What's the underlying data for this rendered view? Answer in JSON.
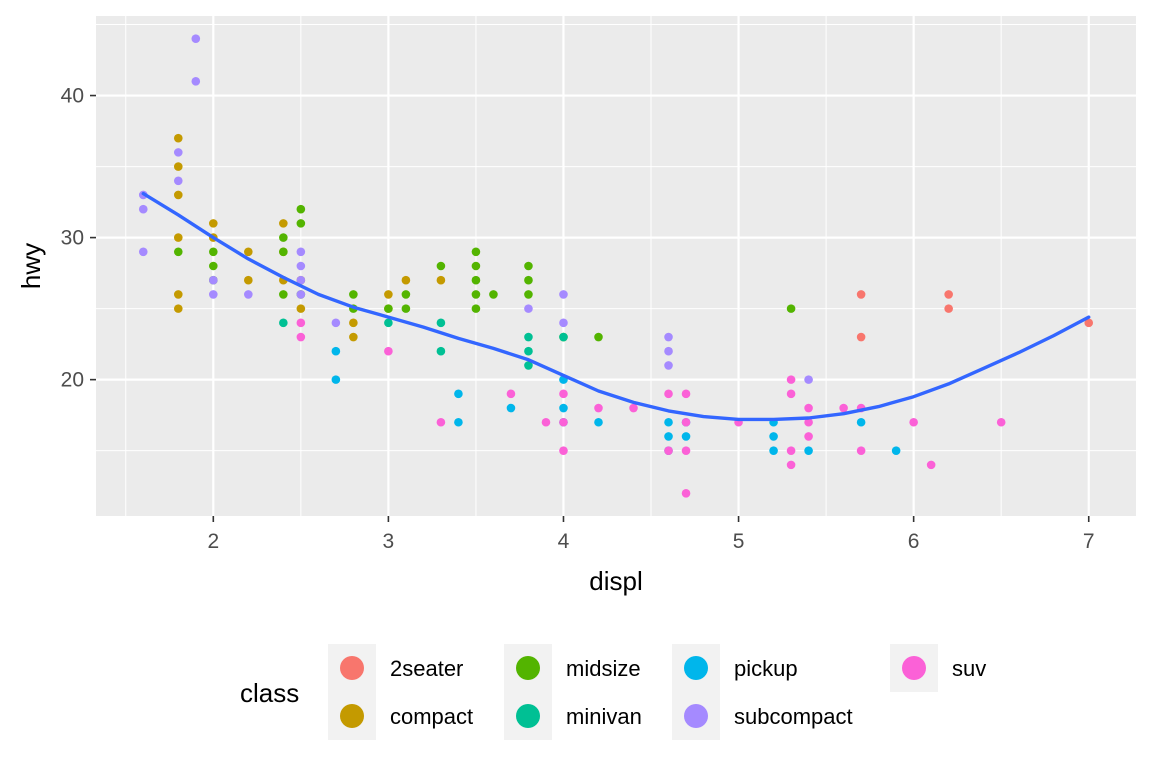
{
  "chart_data": {
    "type": "scatter",
    "xlabel": "displ",
    "ylabel": "hwy",
    "xlim": [
      1.33,
      7.27
    ],
    "ylim": [
      10.4,
      45.6
    ],
    "x_ticks": [
      2,
      3,
      4,
      5,
      6,
      7
    ],
    "y_ticks": [
      20,
      30,
      40
    ],
    "grid": true,
    "legend": {
      "title": "class",
      "placement": "bottom",
      "entries": [
        {
          "name": "2seater",
          "color": "#F8766D"
        },
        {
          "name": "compact",
          "color": "#C49A00"
        },
        {
          "name": "midsize",
          "color": "#53B400"
        },
        {
          "name": "minivan",
          "color": "#00C094"
        },
        {
          "name": "pickup",
          "color": "#00B6EB"
        },
        {
          "name": "subcompact",
          "color": "#A58AFF"
        },
        {
          "name": "suv",
          "color": "#FB61D7"
        }
      ]
    },
    "series": [
      {
        "name": "2seater",
        "color": "#F8766D",
        "points": [
          [
            5.7,
            26
          ],
          [
            5.7,
            23
          ],
          [
            6.2,
            26
          ],
          [
            6.2,
            25
          ],
          [
            7.0,
            24
          ]
        ]
      },
      {
        "name": "compact",
        "color": "#C49A00",
        "points": [
          [
            1.8,
            37
          ],
          [
            1.8,
            35
          ],
          [
            1.8,
            33
          ],
          [
            1.8,
            30
          ],
          [
            1.8,
            26
          ],
          [
            1.8,
            25
          ],
          [
            2.0,
            31
          ],
          [
            2.0,
            30
          ],
          [
            2.2,
            29
          ],
          [
            2.2,
            27
          ],
          [
            2.4,
            31
          ],
          [
            2.4,
            29
          ],
          [
            2.4,
            27
          ],
          [
            2.5,
            27
          ],
          [
            2.5,
            25
          ],
          [
            2.8,
            24
          ],
          [
            2.8,
            23
          ],
          [
            3.0,
            26
          ],
          [
            3.0,
            25
          ],
          [
            3.1,
            27
          ],
          [
            3.3,
            27
          ]
        ]
      },
      {
        "name": "midsize",
        "color": "#53B400",
        "points": [
          [
            1.8,
            29
          ],
          [
            2.0,
            29
          ],
          [
            2.0,
            28
          ],
          [
            2.0,
            27
          ],
          [
            2.4,
            30
          ],
          [
            2.4,
            29
          ],
          [
            2.4,
            26
          ],
          [
            2.5,
            32
          ],
          [
            2.5,
            31
          ],
          [
            2.5,
            26
          ],
          [
            2.8,
            26
          ],
          [
            2.8,
            25
          ],
          [
            3.0,
            25
          ],
          [
            3.1,
            26
          ],
          [
            3.1,
            25
          ],
          [
            3.3,
            28
          ],
          [
            3.5,
            29
          ],
          [
            3.5,
            28
          ],
          [
            3.5,
            27
          ],
          [
            3.5,
            26
          ],
          [
            3.5,
            25
          ],
          [
            3.6,
            26
          ],
          [
            3.8,
            28
          ],
          [
            3.8,
            27
          ],
          [
            3.8,
            26
          ],
          [
            4.0,
            23
          ],
          [
            4.2,
            23
          ],
          [
            5.3,
            25
          ]
        ]
      },
      {
        "name": "minivan",
        "color": "#00C094",
        "points": [
          [
            2.4,
            24
          ],
          [
            3.0,
            24
          ],
          [
            3.3,
            24
          ],
          [
            3.3,
            22
          ],
          [
            3.8,
            23
          ],
          [
            3.8,
            22
          ],
          [
            3.8,
            21
          ],
          [
            4.0,
            23
          ]
        ]
      },
      {
        "name": "pickup",
        "color": "#00B6EB",
        "points": [
          [
            2.7,
            22
          ],
          [
            2.7,
            20
          ],
          [
            3.4,
            19
          ],
          [
            3.4,
            17
          ],
          [
            3.7,
            18
          ],
          [
            4.0,
            20
          ],
          [
            4.0,
            18
          ],
          [
            4.0,
            17
          ],
          [
            4.2,
            17
          ],
          [
            4.6,
            17
          ],
          [
            4.6,
            16
          ],
          [
            4.6,
            15
          ],
          [
            4.7,
            17
          ],
          [
            4.7,
            16
          ],
          [
            5.2,
            17
          ],
          [
            5.2,
            16
          ],
          [
            5.2,
            15
          ],
          [
            5.4,
            15
          ],
          [
            5.7,
            17
          ],
          [
            5.9,
            15
          ]
        ]
      },
      {
        "name": "subcompact",
        "color": "#A58AFF",
        "points": [
          [
            1.6,
            33
          ],
          [
            1.6,
            32
          ],
          [
            1.6,
            29
          ],
          [
            1.8,
            36
          ],
          [
            1.8,
            34
          ],
          [
            1.9,
            44
          ],
          [
            1.9,
            41
          ],
          [
            2.0,
            27
          ],
          [
            2.0,
            26
          ],
          [
            2.2,
            26
          ],
          [
            2.5,
            29
          ],
          [
            2.5,
            28
          ],
          [
            2.5,
            27
          ],
          [
            2.5,
            26
          ],
          [
            2.7,
            24
          ],
          [
            3.8,
            25
          ],
          [
            4.0,
            26
          ],
          [
            4.0,
            24
          ],
          [
            4.6,
            23
          ],
          [
            4.6,
            22
          ],
          [
            4.6,
            21
          ],
          [
            5.4,
            20
          ]
        ]
      },
      {
        "name": "suv",
        "color": "#FB61D7",
        "points": [
          [
            2.5,
            24
          ],
          [
            2.5,
            23
          ],
          [
            3.0,
            22
          ],
          [
            3.3,
            17
          ],
          [
            3.7,
            19
          ],
          [
            3.9,
            17
          ],
          [
            4.0,
            19
          ],
          [
            4.0,
            17
          ],
          [
            4.0,
            15
          ],
          [
            4.2,
            18
          ],
          [
            4.4,
            18
          ],
          [
            4.6,
            19
          ],
          [
            4.6,
            15
          ],
          [
            4.7,
            19
          ],
          [
            4.7,
            17
          ],
          [
            4.7,
            15
          ],
          [
            4.7,
            12
          ],
          [
            5.0,
            17
          ],
          [
            5.3,
            20
          ],
          [
            5.3,
            19
          ],
          [
            5.3,
            15
          ],
          [
            5.3,
            14
          ],
          [
            5.4,
            18
          ],
          [
            5.4,
            17
          ],
          [
            5.4,
            16
          ],
          [
            5.6,
            18
          ],
          [
            5.7,
            18
          ],
          [
            5.7,
            15
          ],
          [
            6.0,
            17
          ],
          [
            6.1,
            14
          ],
          [
            6.5,
            17
          ]
        ]
      }
    ],
    "smooth": {
      "color": "#3366FF",
      "points": [
        [
          1.6,
          33.1
        ],
        [
          1.8,
          31.6
        ],
        [
          2.0,
          30.0
        ],
        [
          2.2,
          28.5
        ],
        [
          2.4,
          27.2
        ],
        [
          2.6,
          26.0
        ],
        [
          2.8,
          25.1
        ],
        [
          3.0,
          24.4
        ],
        [
          3.2,
          23.7
        ],
        [
          3.4,
          22.9
        ],
        [
          3.6,
          22.2
        ],
        [
          3.8,
          21.4
        ],
        [
          4.0,
          20.3
        ],
        [
          4.2,
          19.2
        ],
        [
          4.4,
          18.4
        ],
        [
          4.6,
          17.8
        ],
        [
          4.8,
          17.4
        ],
        [
          5.0,
          17.2
        ],
        [
          5.2,
          17.2
        ],
        [
          5.4,
          17.3
        ],
        [
          5.6,
          17.6
        ],
        [
          5.8,
          18.1
        ],
        [
          6.0,
          18.8
        ],
        [
          6.2,
          19.7
        ],
        [
          6.4,
          20.8
        ],
        [
          6.6,
          21.9
        ],
        [
          6.8,
          23.1
        ],
        [
          7.0,
          24.4
        ]
      ]
    }
  }
}
